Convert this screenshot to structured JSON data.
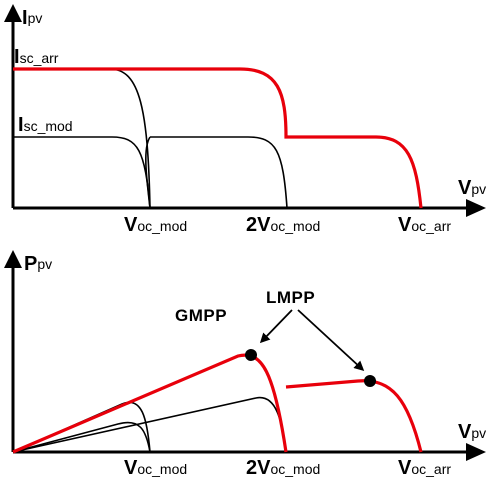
{
  "top": {
    "y_axis": {
      "main": "I",
      "sub": "pv"
    },
    "x_axis": {
      "main": "V",
      "sub": "pv"
    },
    "isc_arr": {
      "main": "I",
      "sub": "sc_arr"
    },
    "isc_mod": {
      "main": "I",
      "sub": "sc_mod"
    },
    "ticks": [
      {
        "main": "V",
        "sub": "oc_mod"
      },
      {
        "main": "2V",
        "sub": "oc_mod"
      },
      {
        "main": "V",
        "sub": "oc_arr"
      }
    ]
  },
  "bottom": {
    "y_axis": {
      "main": "P",
      "sub": "pv"
    },
    "x_axis": {
      "main": "V",
      "sub": "pv"
    },
    "ticks": [
      {
        "main": "V",
        "sub": "oc_mod"
      },
      {
        "main": "2V",
        "sub": "oc_mod"
      },
      {
        "main": "V",
        "sub": "oc_arr"
      }
    ],
    "gmpp": "GMPP",
    "lmpp": "LMPP"
  },
  "colors": {
    "highlight": "#e8000b",
    "axis": "#000000"
  }
}
